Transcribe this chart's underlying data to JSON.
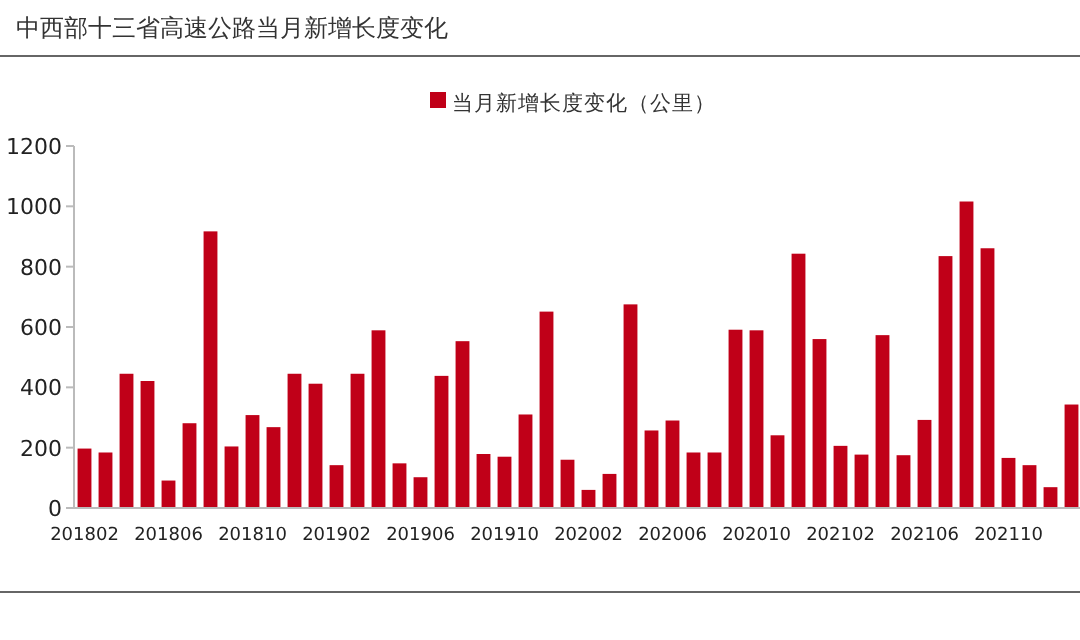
{
  "chart_data": {
    "type": "bar",
    "title": "中西部十三省高速公路当月新增长度变化",
    "categories": [
      "201802",
      null,
      null,
      null,
      "201806",
      null,
      null,
      null,
      "201810",
      null,
      null,
      null,
      "201902",
      null,
      null,
      null,
      "201906",
      null,
      null,
      null,
      "201910",
      null,
      null,
      null,
      "202002",
      null,
      null,
      null,
      "202006",
      null,
      null,
      null,
      "202010",
      null,
      null,
      null,
      "202102",
      null,
      null,
      null,
      "202106",
      null,
      null,
      null,
      "202110",
      null,
      null,
      null
    ],
    "series": [
      {
        "name": "当月新增长度变化（公里）",
        "color": "#c00018",
        "values": [
          197,
          184,
          445,
          421,
          91,
          281,
          917,
          204,
          308,
          268,
          445,
          412,
          142,
          445,
          589,
          148,
          102,
          438,
          553,
          179,
          170,
          310,
          651,
          160,
          60,
          113,
          675,
          257,
          290,
          184,
          184,
          591,
          589,
          241,
          843,
          560,
          206,
          177,
          573,
          175,
          292,
          835,
          1016,
          861,
          166,
          142,
          69,
          343
        ]
      }
    ],
    "ylim": [
      0,
      1200
    ],
    "yticks": [
      0,
      200,
      400,
      600,
      800,
      1000,
      1200
    ],
    "legend": "top",
    "grid": false
  }
}
